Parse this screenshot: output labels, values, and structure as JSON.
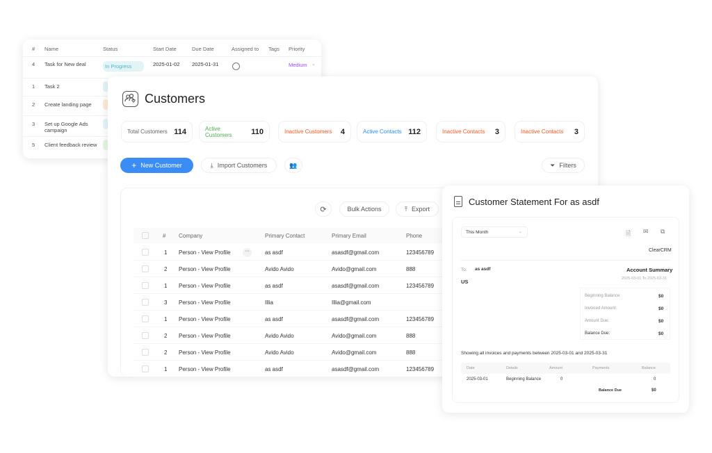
{
  "tasks": {
    "headers": [
      "#",
      "Name",
      "Status",
      "Start Date",
      "Due Date",
      "Assigned to",
      "Tags",
      "Priority"
    ],
    "rows": [
      {
        "num": "4",
        "name": "Task for New deal",
        "status": "In Progress",
        "start": "2025-01-02",
        "due": "2025-01-31",
        "priority": "Medium"
      },
      {
        "num": "1",
        "name": "Task 2"
      },
      {
        "num": "2",
        "name": "Create landing page"
      },
      {
        "num": "3",
        "name": "Set up Google Ads campaign"
      },
      {
        "num": "5",
        "name": "Client feedback review"
      }
    ],
    "colors": {
      "status": "#4bb8c9",
      "priority": "#9b4dff"
    }
  },
  "customers": {
    "title": "Customers",
    "stats": [
      {
        "label": "Total Customers",
        "value": "114",
        "color": "#666666"
      },
      {
        "label": "Active Customers",
        "value": "110",
        "color": "#4caf50"
      },
      {
        "label": "Inactive Customers",
        "value": "4",
        "color": "#ff5722"
      },
      {
        "label": "Active Contacts",
        "value": "112",
        "color": "#2f8cff"
      },
      {
        "label": "Inactive Contacts",
        "value": "3",
        "color": "#ff5722"
      },
      {
        "label": "Inactive Contacts",
        "value": "3",
        "color": "#ff5722"
      }
    ],
    "new_button": "New Customer",
    "import_button": "Import Customers",
    "filters_button": "Filters",
    "bulk_button": "Bulk Actions",
    "export_button": "Export",
    "accent": "#3b8cf5",
    "headers": [
      "#",
      "Company",
      "Primary Contact",
      "Primary Email",
      "Phone"
    ],
    "rows": [
      [
        "1",
        "Person - View Profile",
        "as asdf",
        "asasdf@gmail.com",
        "123456789"
      ],
      [
        "2",
        "Person - View Profile",
        "Avido Avido",
        "Avido@gmail.com",
        "888"
      ],
      [
        "1",
        "Person - View Profile",
        "as asdf",
        "asasdf@gmail.com",
        "123456789"
      ],
      [
        "3",
        "Person - View Profile",
        "Illia",
        "Illia@gmail.com",
        ""
      ],
      [
        "1",
        "Person - View Profile",
        "as asdf",
        "asasdf@gmail.com",
        "123456789"
      ],
      [
        "2",
        "Person - View Profile",
        "Avido Avido",
        "Avido@gmail.com",
        "888"
      ],
      [
        "2",
        "Person - View Profile",
        "Avido Avido",
        "Avido@gmail.com",
        "888"
      ],
      [
        "1",
        "Person - View Profile",
        "as asdf",
        "asasdf@gmail.com",
        "123456789"
      ]
    ]
  },
  "statement": {
    "title": "Customer Statement For as asdf",
    "period": "This Month",
    "company": "ClearCRM",
    "to_label": "To:",
    "to_name": "as asdf",
    "country": "US",
    "summary_title": "Account Summary",
    "summary_range": "2025-03-01 To 2025-03-31",
    "summary": [
      {
        "label": "Beginning Balance:",
        "value": "$0"
      },
      {
        "label": "Invoiced Amount:",
        "value": "$0"
      },
      {
        "label": "Amount Due:",
        "value": "$0"
      },
      {
        "label": "Balance Due:",
        "value": "$0"
      }
    ],
    "showing": "Showing all invoices and payments between 2025-03-01 and 2025-03-31",
    "table_headers": [
      "Date",
      "Details",
      "Amount",
      "Payments",
      "Balance"
    ],
    "table_row": [
      "2025-03-01",
      "Beginning Balance",
      "0",
      "",
      "0"
    ],
    "balance_due_label": "Balance Due",
    "balance_due_value": "$0"
  }
}
